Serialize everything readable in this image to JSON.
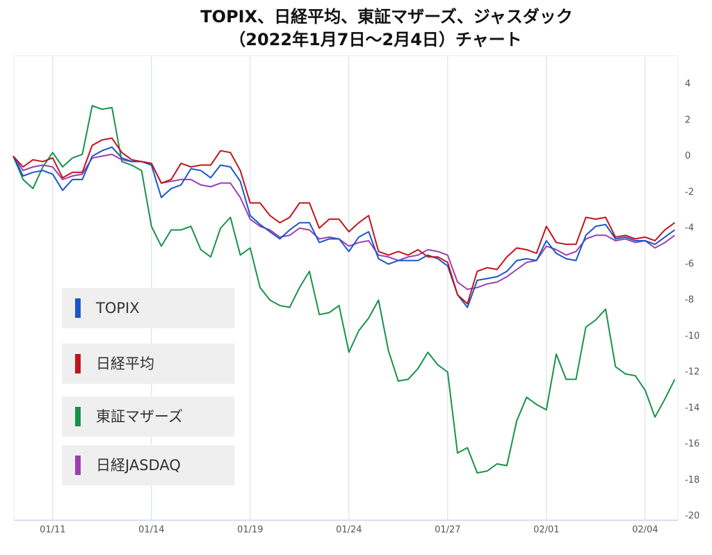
{
  "chart_data": {
    "type": "line",
    "title": "TOPIX、日経平均、東証マザーズ、ジャスダック",
    "subtitle": "（2022年1月7日～2月4日）チャート",
    "categories": [
      null,
      null,
      null,
      null,
      "01/11",
      null,
      null,
      null,
      null,
      null,
      null,
      null,
      null,
      null,
      "01/14",
      null,
      null,
      null,
      null,
      null,
      null,
      null,
      null,
      null,
      "01/19",
      null,
      null,
      null,
      null,
      null,
      null,
      null,
      null,
      null,
      "01/24",
      null,
      null,
      null,
      null,
      null,
      null,
      null,
      null,
      null,
      "01/27",
      null,
      null,
      null,
      null,
      null,
      null,
      null,
      null,
      null,
      "02/01",
      null,
      null,
      null,
      null,
      null,
      null,
      null,
      null,
      null,
      "02/04",
      null,
      null,
      null
    ],
    "series": [
      {
        "name": "TOPIX",
        "color": "#1a56c8",
        "values": [
          0,
          -1.1,
          -0.9,
          -0.8,
          -1.0,
          -1.9,
          -1.3,
          -1.3,
          0.0,
          0.3,
          0.5,
          -0.1,
          -0.3,
          -0.3,
          -0.5,
          -2.3,
          -1.8,
          -1.6,
          -0.7,
          -0.8,
          -1.2,
          -0.5,
          -0.6,
          -1.4,
          -3.3,
          -3.8,
          -4.2,
          -4.6,
          -4.1,
          -3.7,
          -3.7,
          -4.8,
          -4.6,
          -4.6,
          -5.3,
          -4.5,
          -4.2,
          -5.7,
          -6.0,
          -5.8,
          -5.8,
          -5.8,
          -5.5,
          -5.7,
          -6.1,
          -7.7,
          -8.4,
          -6.9,
          -6.8,
          -6.7,
          -6.4,
          -5.8,
          -5.7,
          -5.8,
          -4.7,
          -5.4,
          -5.7,
          -5.8,
          -4.4,
          -3.9,
          -3.8,
          -4.6,
          -4.5,
          -4.7,
          -4.7,
          -4.9,
          -4.5,
          -4.1
        ]
      },
      {
        "name": "日経平均",
        "color": "#c0141c",
        "values": [
          0,
          -0.6,
          -0.2,
          -0.3,
          -0.1,
          -1.2,
          -0.9,
          -0.9,
          0.6,
          0.9,
          1.0,
          0.2,
          -0.2,
          -0.3,
          -0.4,
          -1.5,
          -1.3,
          -0.4,
          -0.6,
          -0.5,
          -0.5,
          0.3,
          0.2,
          -0.8,
          -2.6,
          -2.6,
          -3.3,
          -3.7,
          -3.4,
          -2.6,
          -2.6,
          -4.0,
          -3.5,
          -3.5,
          -4.2,
          -3.7,
          -3.3,
          -5.3,
          -5.5,
          -5.3,
          -5.5,
          -5.2,
          -5.6,
          -5.6,
          -5.9,
          -7.7,
          -8.2,
          -6.4,
          -6.2,
          -6.3,
          -5.6,
          -5.1,
          -5.2,
          -5.4,
          -3.9,
          -4.8,
          -4.9,
          -4.9,
          -3.4,
          -3.5,
          -3.4,
          -4.5,
          -4.4,
          -4.6,
          -4.5,
          -4.7,
          -4.1,
          -3.7
        ]
      },
      {
        "name": "東証マザーズ",
        "color": "#17924a",
        "values": [
          0,
          -1.3,
          -1.8,
          -0.6,
          0.2,
          -0.6,
          -0.1,
          0.1,
          2.8,
          2.6,
          2.7,
          -0.3,
          -0.5,
          -0.8,
          -3.9,
          -5.0,
          -4.1,
          -4.1,
          -3.9,
          -5.2,
          -5.6,
          -4.0,
          -3.4,
          -5.5,
          -5.1,
          -7.3,
          -8.0,
          -8.3,
          -8.4,
          -7.3,
          -6.4,
          -8.8,
          -8.7,
          -8.3,
          -10.9,
          -9.7,
          -9.0,
          -8.0,
          -10.8,
          -12.5,
          -12.4,
          -11.8,
          -10.9,
          -11.6,
          -12.0,
          -16.5,
          -16.2,
          -17.6,
          -17.5,
          -17.1,
          -17.2,
          -14.7,
          -13.4,
          -13.8,
          -14.1,
          -11.0,
          -12.4,
          -12.4,
          -9.5,
          -9.1,
          -8.5,
          -11.7,
          -12.1,
          -12.2,
          -13.0,
          -14.5,
          -13.5,
          -12.4
        ]
      },
      {
        "name": "日経JASDAQ",
        "color": "#9a3fb0",
        "values": [
          0,
          -0.8,
          -0.6,
          -0.5,
          -0.6,
          -1.3,
          -1.1,
          -1.0,
          -0.1,
          0.0,
          0.1,
          -0.2,
          -0.3,
          -0.3,
          -0.4,
          -1.5,
          -1.4,
          -1.3,
          -1.3,
          -1.6,
          -1.7,
          -1.5,
          -1.5,
          -2.3,
          -3.5,
          -3.9,
          -4.1,
          -4.5,
          -4.4,
          -4.0,
          -4.1,
          -4.6,
          -4.5,
          -4.6,
          -5.0,
          -4.8,
          -4.7,
          -5.5,
          -5.6,
          -5.8,
          -5.6,
          -5.5,
          -5.2,
          -5.3,
          -5.5,
          -7.0,
          -7.4,
          -7.3,
          -7.1,
          -7.0,
          -6.7,
          -6.3,
          -5.9,
          -5.8,
          -5.0,
          -5.2,
          -5.5,
          -5.3,
          -4.6,
          -4.4,
          -4.4,
          -4.7,
          -4.6,
          -4.8,
          -4.7,
          -5.1,
          -4.8,
          -4.4
        ]
      }
    ],
    "ylim": [
      -20,
      4
    ],
    "yticks": [
      4,
      2,
      0,
      -2,
      -4,
      -6,
      -8,
      -10,
      -12,
      -14,
      -16,
      -18,
      -20
    ],
    "grid": true
  }
}
